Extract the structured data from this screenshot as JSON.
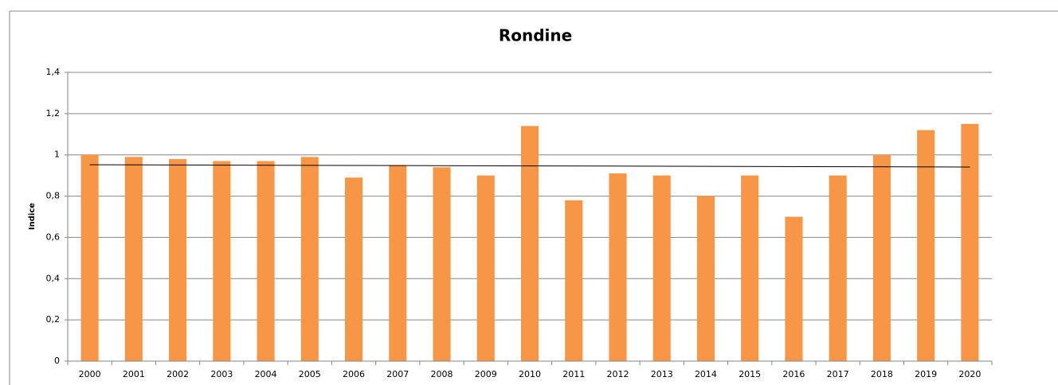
{
  "chart_data": {
    "type": "bar",
    "title": "Rondine",
    "y_label": "Indice",
    "categories": [
      "2000",
      "2001",
      "2002",
      "2003",
      "2004",
      "2005",
      "2006",
      "2007",
      "2008",
      "2009",
      "2010",
      "2011",
      "2012",
      "2013",
      "2014",
      "2015",
      "2016",
      "2017",
      "2018",
      "2019",
      "2020"
    ],
    "values": [
      1.0,
      0.99,
      0.98,
      0.97,
      0.97,
      0.99,
      0.89,
      0.95,
      0.94,
      0.9,
      1.14,
      0.78,
      0.91,
      0.9,
      0.8,
      0.9,
      0.7,
      0.9,
      1.0,
      1.12,
      1.15
    ],
    "color": "#f79646",
    "ylim": [
      0,
      1.4
    ],
    "yticks": [
      0,
      {
        "value": 0.2,
        "label": "0,2"
      },
      {
        "value": 0.4,
        "label": "0,4"
      },
      {
        "value": 0.6,
        "label": "0,6"
      },
      {
        "value": 0.8,
        "label": "0,8"
      },
      1,
      {
        "value": 1.2,
        "label": "1,2"
      },
      {
        "value": 1.4,
        "label": "1,4"
      }
    ],
    "grid": true,
    "trendline": true
  }
}
